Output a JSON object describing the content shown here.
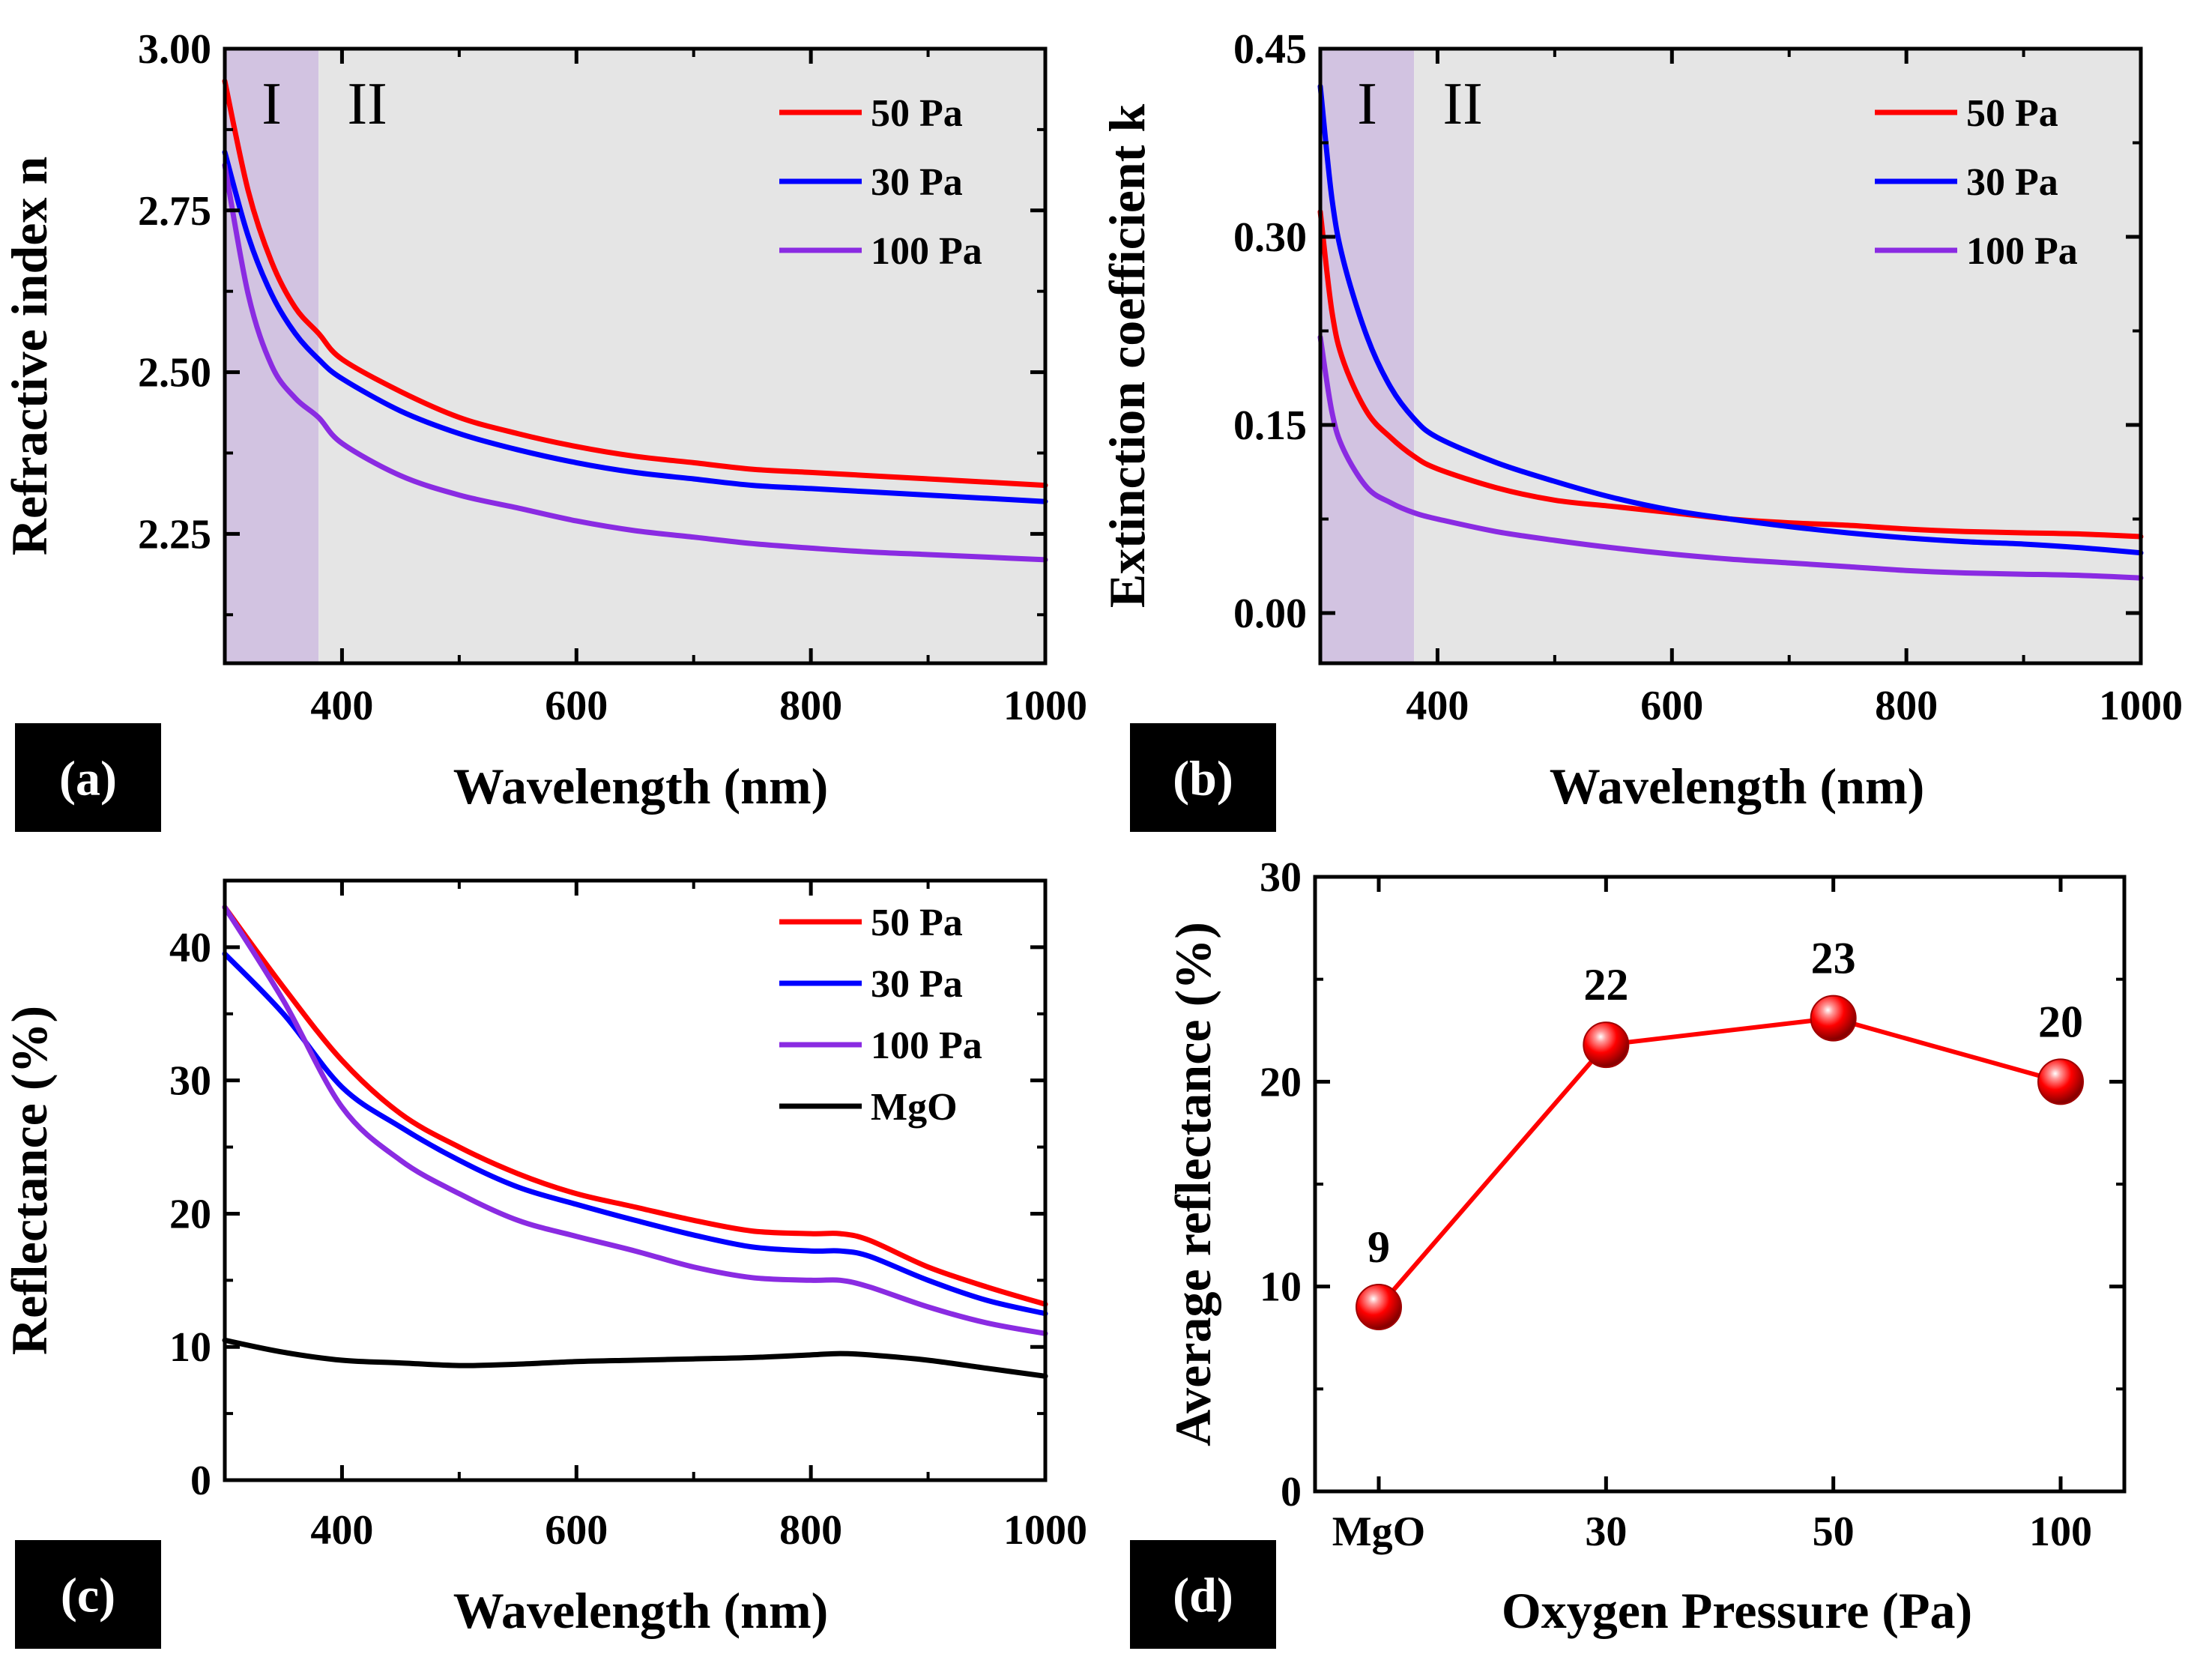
{
  "chart_data": [
    {
      "panel": "(a)",
      "type": "line",
      "xlabel": "Wavelength (nm)",
      "ylabel": "Refractive index n",
      "xlim": [
        300,
        1000
      ],
      "ylim": [
        2.05,
        3.0
      ],
      "xticks": [
        400,
        600,
        800,
        1000
      ],
      "yticks": [
        2.25,
        2.5,
        2.75,
        3.0
      ],
      "ytick_labels": [
        "2.25",
        "2.50",
        "2.75",
        "3.00"
      ],
      "regions": [
        {
          "label": "I",
          "from": 300,
          "to": 380,
          "color": "#d2c3e1"
        },
        {
          "label": "II",
          "from": 380,
          "to": 1000,
          "color": "#e5e5e5"
        }
      ],
      "legend": "top-right",
      "x": [
        300,
        320,
        340,
        360,
        380,
        400,
        450,
        500,
        550,
        600,
        650,
        700,
        750,
        800,
        850,
        900,
        950,
        1000
      ],
      "series": [
        {
          "name": "50 Pa",
          "color": "#ff0000",
          "values": [
            2.95,
            2.78,
            2.67,
            2.6,
            2.56,
            2.52,
            2.47,
            2.43,
            2.405,
            2.385,
            2.37,
            2.36,
            2.35,
            2.345,
            2.34,
            2.335,
            2.33,
            2.325
          ]
        },
        {
          "name": "30 Pa",
          "color": "#0000ff",
          "values": [
            2.84,
            2.71,
            2.62,
            2.56,
            2.52,
            2.49,
            2.44,
            2.405,
            2.38,
            2.36,
            2.345,
            2.335,
            2.325,
            2.32,
            2.315,
            2.31,
            2.305,
            2.3
          ]
        },
        {
          "name": "100 Pa",
          "color": "#8a2be2",
          "values": [
            2.82,
            2.62,
            2.51,
            2.46,
            2.43,
            2.39,
            2.34,
            2.31,
            2.29,
            2.27,
            2.255,
            2.245,
            2.235,
            2.228,
            2.222,
            2.218,
            2.214,
            2.21
          ]
        }
      ]
    },
    {
      "panel": "(b)",
      "type": "line",
      "xlabel": "Wavelength (nm)",
      "ylabel": "Extinction coefficient k",
      "xlim": [
        300,
        1000
      ],
      "ylim": [
        -0.04,
        0.45
      ],
      "xticks": [
        400,
        600,
        800,
        1000
      ],
      "yticks": [
        0.0,
        0.15,
        0.3,
        0.45
      ],
      "ytick_labels": [
        "0.00",
        "0.15",
        "0.30",
        "0.45"
      ],
      "regions": [
        {
          "label": "I",
          "from": 300,
          "to": 380,
          "color": "#d2c3e1"
        },
        {
          "label": "II",
          "from": 380,
          "to": 1000,
          "color": "#e5e5e5"
        }
      ],
      "legend": "top-right",
      "x": [
        300,
        310,
        320,
        340,
        360,
        380,
        400,
        450,
        500,
        550,
        600,
        650,
        700,
        750,
        800,
        850,
        900,
        950,
        1000
      ],
      "series": [
        {
          "name": "50 Pa",
          "color": "#ff0000",
          "values": [
            0.32,
            0.24,
            0.2,
            0.16,
            0.14,
            0.125,
            0.115,
            0.1,
            0.09,
            0.085,
            0.08,
            0.075,
            0.072,
            0.07,
            0.067,
            0.065,
            0.064,
            0.063,
            0.061
          ]
        },
        {
          "name": "30 Pa",
          "color": "#0000ff",
          "values": [
            0.42,
            0.33,
            0.28,
            0.22,
            0.18,
            0.155,
            0.14,
            0.12,
            0.105,
            0.092,
            0.082,
            0.075,
            0.069,
            0.064,
            0.06,
            0.057,
            0.055,
            0.052,
            0.048
          ]
        },
        {
          "name": "100 Pa",
          "color": "#8a2be2",
          "values": [
            0.22,
            0.16,
            0.13,
            0.1,
            0.088,
            0.08,
            0.075,
            0.065,
            0.058,
            0.052,
            0.047,
            0.043,
            0.04,
            0.037,
            0.034,
            0.032,
            0.031,
            0.03,
            0.028
          ]
        }
      ]
    },
    {
      "panel": "(c)",
      "type": "line",
      "xlabel": "Wavelength (nm)",
      "ylabel": "Reflectance (%)",
      "xlim": [
        300,
        1000
      ],
      "ylim": [
        0,
        45
      ],
      "xticks": [
        400,
        600,
        800,
        1000
      ],
      "yticks": [
        0,
        10,
        20,
        30,
        40
      ],
      "ytick_labels": [
        "0",
        "10",
        "20",
        "30",
        "40"
      ],
      "legend": "top-right",
      "x": [
        300,
        350,
        400,
        450,
        500,
        550,
        600,
        650,
        700,
        750,
        800,
        825,
        850,
        900,
        950,
        1000
      ],
      "series": [
        {
          "name": "50 Pa",
          "color": "#ff0000",
          "values": [
            43,
            37,
            31.5,
            27.5,
            25,
            23,
            21.5,
            20.5,
            19.5,
            18.7,
            18.5,
            18.5,
            18,
            16,
            14.5,
            13.2
          ]
        },
        {
          "name": "30 Pa",
          "color": "#0000ff",
          "values": [
            39.5,
            35,
            29.5,
            26.5,
            24,
            22,
            20.7,
            19.5,
            18.4,
            17.5,
            17.2,
            17.2,
            16.8,
            15,
            13.5,
            12.5
          ]
        },
        {
          "name": "100 Pa",
          "color": "#8a2be2",
          "values": [
            43,
            36,
            28,
            24,
            21.5,
            19.5,
            18.3,
            17.2,
            16,
            15.2,
            15,
            15,
            14.5,
            13,
            11.8,
            11
          ]
        },
        {
          "name": "MgO",
          "color": "#000000",
          "values": [
            10.5,
            9.6,
            9,
            8.8,
            8.6,
            8.7,
            8.9,
            9,
            9.1,
            9.2,
            9.4,
            9.5,
            9.4,
            9,
            8.4,
            7.8
          ]
        }
      ]
    },
    {
      "panel": "(d)",
      "type": "line",
      "xlabel": "Oxygen Pressure (Pa)",
      "ylabel": "Average reflectance (%)",
      "ylim": [
        0,
        30
      ],
      "yticks": [
        0,
        10,
        20,
        30
      ],
      "ytick_labels": [
        "0",
        "10",
        "20",
        "30"
      ],
      "categories": [
        "MgO",
        "30",
        "50",
        "100"
      ],
      "values": [
        9,
        21.8,
        23.1,
        20
      ],
      "data_labels": [
        "9",
        "22",
        "23",
        "20"
      ],
      "series_color": "#ff0000"
    }
  ]
}
